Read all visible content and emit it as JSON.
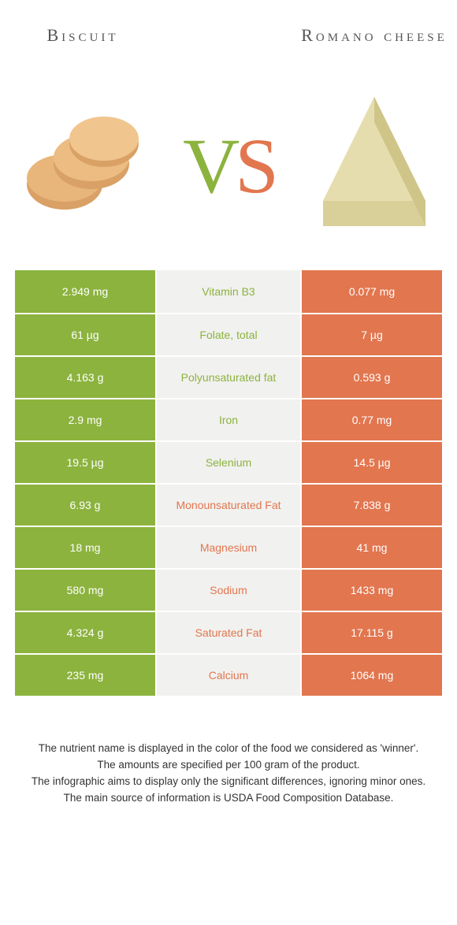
{
  "header": {
    "left_title": "Biscuit",
    "right_title": "Romano cheese",
    "vs_v": "V",
    "vs_s": "S"
  },
  "colors": {
    "left": "#8cb33e",
    "right": "#e2764f",
    "mid_bg": "#f1f1ef",
    "page_bg": "#ffffff",
    "cell_gap": "#ffffff",
    "text": "#333333"
  },
  "typography": {
    "header_fontsize": 22,
    "vs_fontsize": 100,
    "cell_fontsize": 14,
    "footer_fontsize": 13.5
  },
  "images": {
    "left_alt": "biscuit-image",
    "right_alt": "cheese-wedge-image"
  },
  "rows": [
    {
      "left": "2.949 mg",
      "mid": "Vitamin B3",
      "winner": "left",
      "right": "0.077 mg"
    },
    {
      "left": "61 µg",
      "mid": "Folate, total",
      "winner": "left",
      "right": "7 µg"
    },
    {
      "left": "4.163 g",
      "mid": "Polyunsaturated fat",
      "winner": "left",
      "right": "0.593 g"
    },
    {
      "left": "2.9 mg",
      "mid": "Iron",
      "winner": "left",
      "right": "0.77 mg"
    },
    {
      "left": "19.5 µg",
      "mid": "Selenium",
      "winner": "left",
      "right": "14.5 µg"
    },
    {
      "left": "6.93 g",
      "mid": "Monounsaturated Fat",
      "winner": "right",
      "right": "7.838 g"
    },
    {
      "left": "18 mg",
      "mid": "Magnesium",
      "winner": "right",
      "right": "41 mg"
    },
    {
      "left": "580 mg",
      "mid": "Sodium",
      "winner": "right",
      "right": "1433 mg"
    },
    {
      "left": "4.324 g",
      "mid": "Saturated Fat",
      "winner": "right",
      "right": "17.115 g"
    },
    {
      "left": "235 mg",
      "mid": "Calcium",
      "winner": "right",
      "right": "1064 mg"
    }
  ],
  "footer": {
    "l1": "The nutrient name is displayed in the color of the food we considered as 'winner'.",
    "l2": "The amounts are specified per 100 gram of the product.",
    "l3": "The infographic aims to display only the significant differences, ignoring minor ones.",
    "l4": "The main source of information is USDA Food Composition Database."
  }
}
